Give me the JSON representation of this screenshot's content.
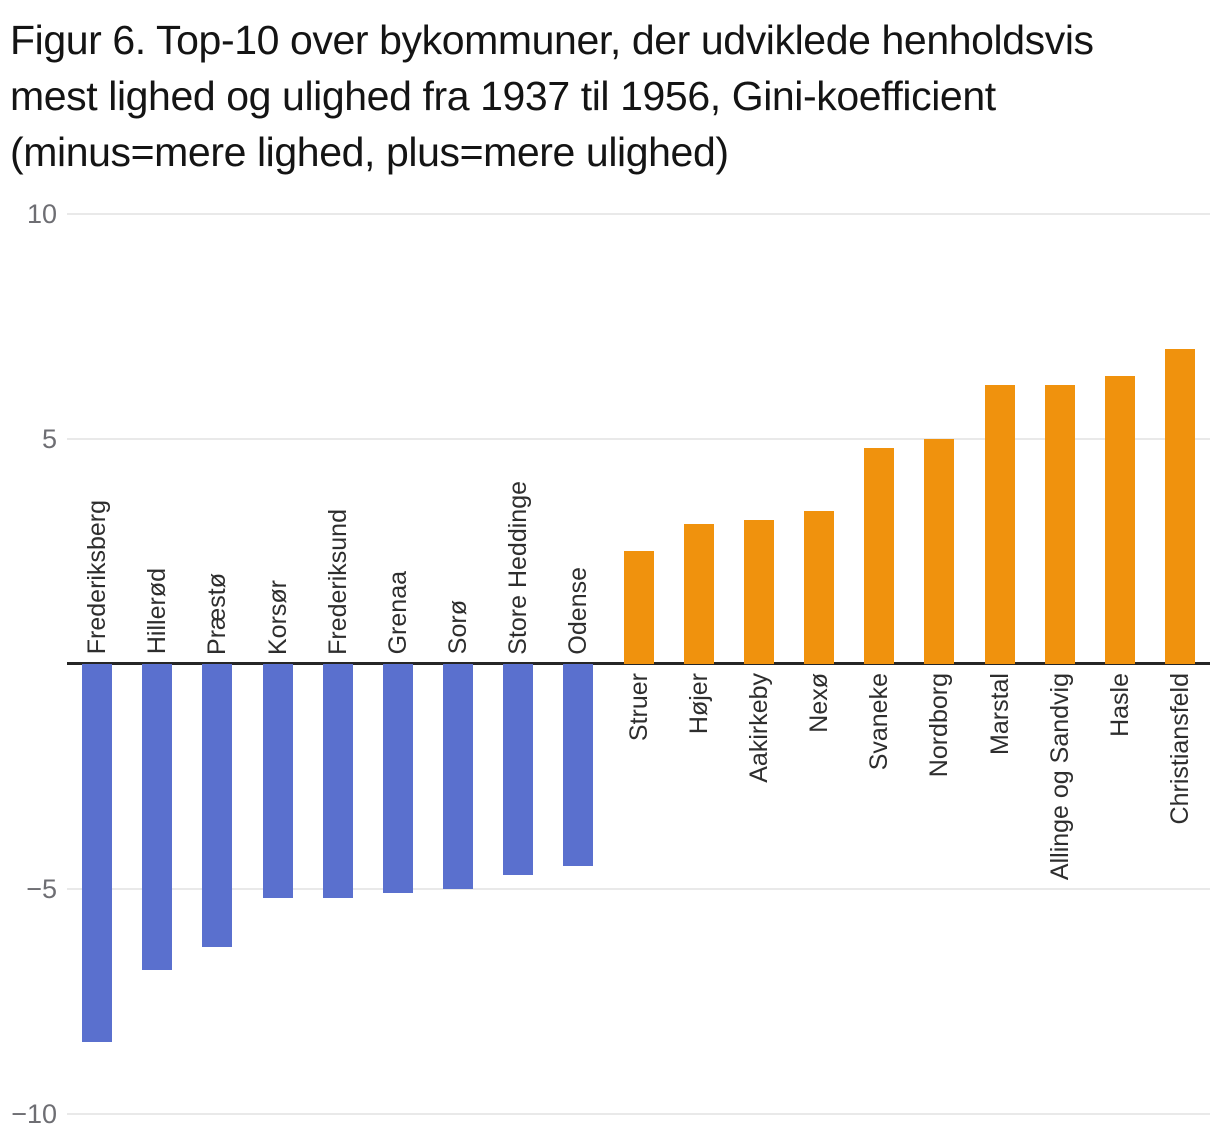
{
  "chart_data": {
    "type": "bar",
    "title": "Figur 6. Top-10 over bykommuner, der udviklede henholdsvis mest lighed og ulighed fra 1937 til 1956, Gini-koefficient (minus=mere lighed, plus=mere ulighed)",
    "title_lines": [
      "Figur 6. Top-10 over bykommuner, der udviklede henholdsvis",
      "mest lighed og ulighed fra 1937 til 1956, Gini-koefficient",
      "(minus=mere lighed, plus=mere ulighed)"
    ],
    "xlabel": "",
    "ylabel": "",
    "ylim": [
      -10,
      10
    ],
    "yticks": [
      10,
      5,
      -5,
      -10
    ],
    "ytick_labels": [
      "10",
      "5",
      "−5",
      "−10"
    ],
    "grid": true,
    "legend": false,
    "categories": [
      "Frederiksberg",
      "Hillerød",
      "Præstø",
      "Korsør",
      "Frederiksund",
      "Grenaa",
      "Sorø",
      "Store Heddinge",
      "Odense",
      "Struer",
      "Højer",
      "Aakirkeby",
      "Nexø",
      "Svaneke",
      "Nordborg",
      "Marstal",
      "Allinge og Sandvig",
      "Hasle",
      "Christiansfeld"
    ],
    "values": [
      -8.4,
      -6.8,
      -6.3,
      -5.2,
      -5.2,
      -5.1,
      -5.0,
      -4.7,
      -4.5,
      2.5,
      3.1,
      3.2,
      3.4,
      4.8,
      5.0,
      6.2,
      6.2,
      6.4,
      7.0
    ],
    "colors": {
      "negative_bar": "#5A70CE",
      "positive_bar": "#F0920D",
      "baseline": "#262626",
      "gridline": "#E9E9E9",
      "tick_label": "#6E6E73",
      "category_label": "#2E2E2E",
      "title": "#141414",
      "background": "#FFFFFF"
    }
  }
}
